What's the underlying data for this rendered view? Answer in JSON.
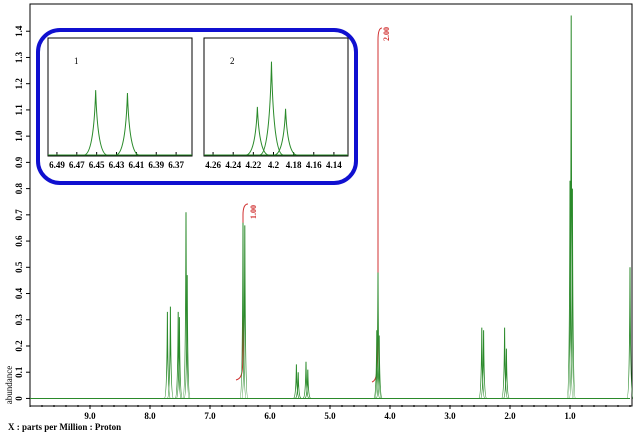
{
  "chart_data": {
    "type": "spectrum",
    "x_label": "X : parts per Million : Proton",
    "y_label": "abundance",
    "xlim": [
      10.0,
      0.0
    ],
    "ylim": [
      -0.025,
      1.5
    ],
    "xticks": [
      {
        "value": 9,
        "label": "9.0"
      },
      {
        "value": 8,
        "label": "8.0"
      },
      {
        "value": 7,
        "label": "7.0"
      },
      {
        "value": 6,
        "label": "6.0"
      },
      {
        "value": 5,
        "label": "5.0"
      },
      {
        "value": 4,
        "label": "4.0"
      },
      {
        "value": 3,
        "label": "3.0"
      },
      {
        "value": 2,
        "label": "2.0"
      },
      {
        "value": 1,
        "label": "1.0"
      }
    ],
    "yticks": [
      0,
      0.1,
      0.2,
      0.3,
      0.4,
      0.5,
      0.6,
      0.7,
      0.8,
      0.9,
      {
        "value": 1,
        "label": "1.0"
      },
      1.1,
      1.2,
      1.3,
      1.4
    ],
    "color": "#2a8a2a",
    "x": [
      7.71,
      7.66,
      7.53,
      7.51,
      7.4,
      7.38,
      6.45,
      6.42,
      5.56,
      5.53,
      5.4,
      5.37,
      4.22,
      4.2,
      4.18,
      2.47,
      2.44,
      2.09,
      2.06,
      1.0,
      0.98,
      0.96,
      0.0
    ],
    "values": [
      0.33,
      0.35,
      0.33,
      0.31,
      0.71,
      0.47,
      0.67,
      0.66,
      0.13,
      0.1,
      0.14,
      0.11,
      0.26,
      0.48,
      0.24,
      0.27,
      0.26,
      0.27,
      0.19,
      0.83,
      1.46,
      0.8,
      0.5
    ],
    "annotations": [
      "1.00",
      "2.00"
    ],
    "insets": [
      {
        "label": "1",
        "xlim": [
          6.499,
          6.354
        ],
        "ylim": [
          0,
          1.2
        ],
        "xticks": [
          6.49,
          6.47,
          6.45,
          6.43,
          6.41,
          6.39,
          6.37
        ],
        "x": [
          6.451,
          6.419
        ],
        "values": [
          0.67,
          0.64
        ]
      },
      {
        "label": "2",
        "xlim": [
          4.269,
          4.126
        ],
        "ylim": [
          0,
          0.6
        ],
        "xticks": [
          4.26,
          4.24,
          4.22,
          4.2,
          4.18,
          4.16,
          4.14
        ],
        "x": [
          4.216,
          4.202,
          4.188
        ],
        "values": [
          0.25,
          0.48,
          0.24
        ]
      }
    ]
  }
}
